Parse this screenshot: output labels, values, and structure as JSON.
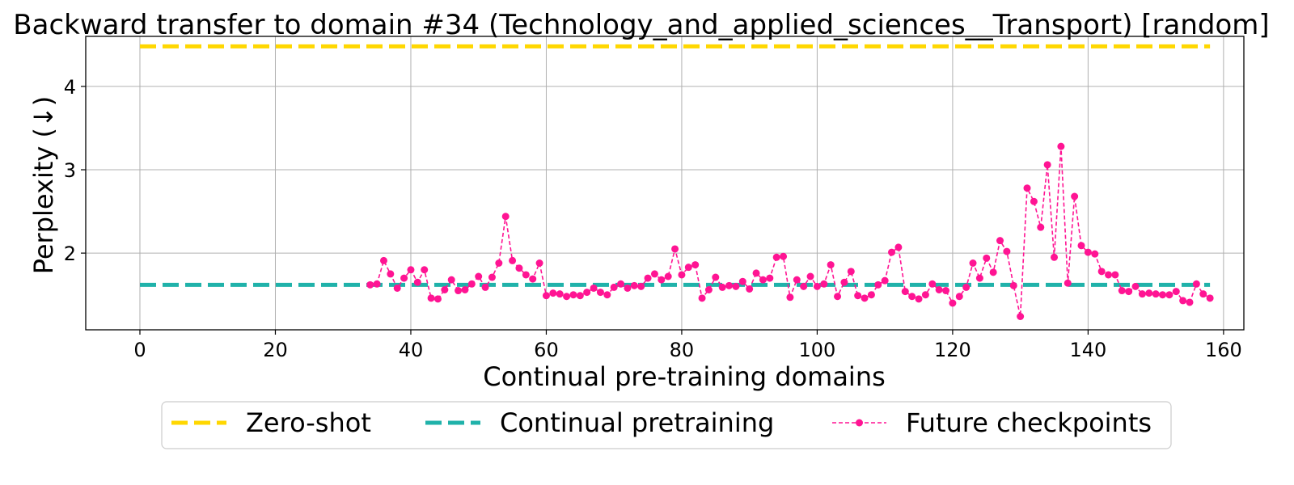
{
  "chart_data": {
    "type": "line",
    "title": "Backward transfer to domain #34 (Technology_and_applied_sciences__Transport) [random]",
    "xlabel": "Continual pre-training domains",
    "ylabel": "Perplexity (↓)",
    "xlim": [
      -8,
      163
    ],
    "ylim": [
      1.08,
      4.6
    ],
    "x_ticks": [
      "0",
      "20",
      "40",
      "60",
      "80",
      "100",
      "120",
      "140",
      "160"
    ],
    "y_ticks": [
      "2",
      "3",
      "4"
    ],
    "grid": true,
    "legend_position": "bottom-center",
    "series": [
      {
        "name": "Zero-shot",
        "style": "dashed",
        "color": "#FFD700",
        "x": [
          0,
          158
        ],
        "y": [
          4.48,
          4.48
        ]
      },
      {
        "name": "Continual pretraining",
        "style": "dashed",
        "color": "#20B2AA",
        "x": [
          0,
          158
        ],
        "y": [
          1.62,
          1.62
        ]
      },
      {
        "name": "Future checkpoints",
        "style": "dashed-markers",
        "color": "#FF1493",
        "x": [
          34,
          35,
          36,
          37,
          38,
          39,
          40,
          41,
          42,
          43,
          44,
          45,
          46,
          47,
          48,
          49,
          50,
          51,
          52,
          53,
          54,
          55,
          56,
          57,
          58,
          59,
          60,
          61,
          62,
          63,
          64,
          65,
          66,
          67,
          68,
          69,
          70,
          71,
          72,
          73,
          74,
          75,
          76,
          77,
          78,
          79,
          80,
          81,
          82,
          83,
          84,
          85,
          86,
          87,
          88,
          89,
          90,
          91,
          92,
          93,
          94,
          95,
          96,
          97,
          98,
          99,
          100,
          101,
          102,
          103,
          104,
          105,
          106,
          107,
          108,
          109,
          110,
          111,
          112,
          113,
          114,
          115,
          116,
          117,
          118,
          119,
          120,
          121,
          122,
          123,
          124,
          125,
          126,
          127,
          128,
          129,
          130,
          131,
          132,
          133,
          134,
          135,
          136,
          137,
          138,
          139,
          140,
          141,
          142,
          143,
          144,
          145,
          146,
          147,
          148,
          149,
          150,
          151,
          152,
          153,
          154,
          155,
          156,
          157,
          158
        ],
        "y": [
          1.62,
          1.63,
          1.91,
          1.75,
          1.58,
          1.7,
          1.8,
          1.65,
          1.8,
          1.46,
          1.45,
          1.56,
          1.68,
          1.55,
          1.56,
          1.63,
          1.72,
          1.59,
          1.71,
          1.88,
          2.44,
          1.91,
          1.82,
          1.74,
          1.69,
          1.88,
          1.49,
          1.52,
          1.51,
          1.48,
          1.5,
          1.49,
          1.53,
          1.58,
          1.53,
          1.5,
          1.59,
          1.63,
          1.58,
          1.61,
          1.6,
          1.7,
          1.75,
          1.68,
          1.72,
          2.05,
          1.74,
          1.83,
          1.86,
          1.46,
          1.56,
          1.71,
          1.59,
          1.61,
          1.6,
          1.66,
          1.57,
          1.76,
          1.68,
          1.7,
          1.95,
          1.96,
          1.47,
          1.68,
          1.6,
          1.72,
          1.6,
          1.63,
          1.86,
          1.48,
          1.65,
          1.78,
          1.49,
          1.46,
          1.5,
          1.62,
          1.67,
          2.01,
          2.07,
          1.54,
          1.48,
          1.45,
          1.5,
          1.63,
          1.56,
          1.55,
          1.4,
          1.48,
          1.59,
          1.88,
          1.7,
          1.94,
          1.77,
          2.15,
          2.02,
          1.61,
          1.24,
          2.78,
          2.62,
          2.31,
          3.06,
          1.95,
          3.28,
          1.64,
          2.68,
          2.09,
          2.01,
          1.99,
          1.78,
          1.74,
          1.74,
          1.55,
          1.54,
          1.6,
          1.51,
          1.52,
          1.51,
          1.5,
          1.5,
          1.54,
          1.43,
          1.41,
          1.63,
          1.51,
          1.46
        ]
      }
    ]
  }
}
